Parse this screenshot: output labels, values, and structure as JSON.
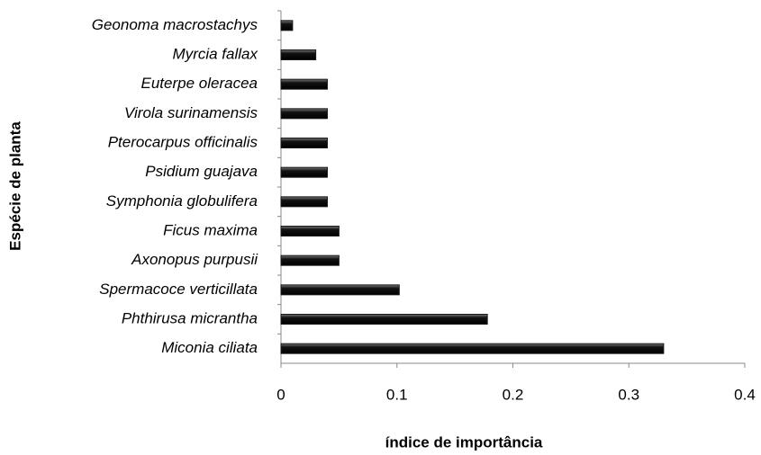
{
  "chart_data": {
    "type": "barh",
    "xlabel": "índice de importância",
    "ylabel": "Espécie de planta",
    "categories": [
      "Geonoma macrostachys",
      "Myrcia fallax",
      "Euterpe oleracea",
      "Virola surinamensis",
      "Pterocarpus officinalis",
      "Psidium guajava",
      "Symphonia globulifera",
      "Ficus maxima",
      "Axonopus purpusii",
      "Spermacoce verticillata",
      "Phthirusa micrantha",
      "Miconia ciliata"
    ],
    "values": [
      0.01,
      0.03,
      0.04,
      0.04,
      0.04,
      0.04,
      0.04,
      0.05,
      0.05,
      0.102,
      0.178,
      0.33
    ],
    "color": "#1a1a1a",
    "xlim": [
      0,
      0.4
    ],
    "xticks": [
      0,
      0.1,
      0.2,
      0.3,
      0.4
    ],
    "grid": false
  }
}
